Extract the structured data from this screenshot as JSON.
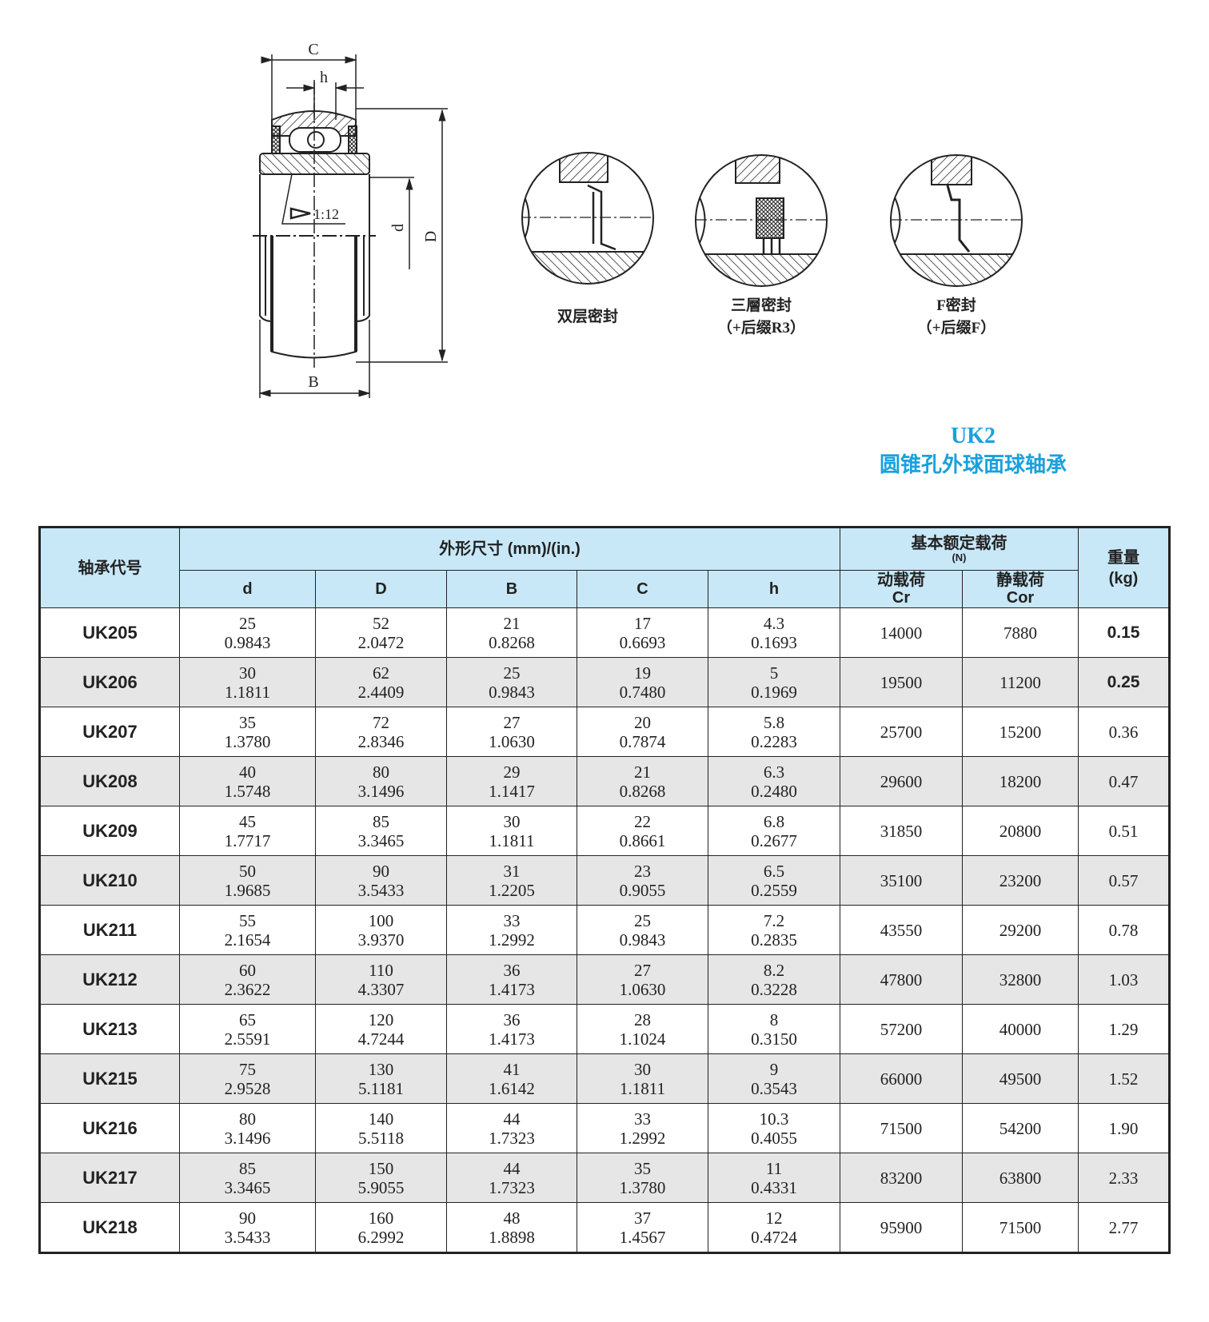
{
  "drawing": {
    "dim_labels": {
      "C": "C",
      "h": "h",
      "B": "B",
      "d": "d",
      "D": "D",
      "taper": "1:12"
    },
    "seals": [
      {
        "line1": "双层密封",
        "line2": ""
      },
      {
        "line1": "三層密封",
        "line2": "（+后缀R3）"
      },
      {
        "line1": "F密封",
        "line2": "（+后缀F）"
      }
    ]
  },
  "title": {
    "code": "UK2",
    "subtitle": "圆锥孔外球面球轴承",
    "color": "#1aa0dc"
  },
  "table": {
    "header": {
      "code": "轴承代号",
      "dims_group": "外形尺寸 (mm)/(in.)",
      "load_group": "基本额定载荷",
      "load_unit": "(N)",
      "weight": "重量",
      "weight_unit": "(kg)",
      "d": "d",
      "D": "D",
      "B": "B",
      "C": "C",
      "h": "h",
      "cr_label": "动载荷",
      "cr": "Cr",
      "cor_label": "静载荷",
      "cor": "Cor"
    },
    "rows": [
      {
        "code": "UK205",
        "d": [
          "25",
          "0.9843"
        ],
        "D": [
          "52",
          "2.0472"
        ],
        "B": [
          "21",
          "0.8268"
        ],
        "C": [
          "17",
          "0.6693"
        ],
        "h": [
          "4.3",
          "0.1693"
        ],
        "Cr": "14000",
        "Cor": "7880",
        "w": "0.15"
      },
      {
        "code": "UK206",
        "d": [
          "30",
          "1.1811"
        ],
        "D": [
          "62",
          "2.4409"
        ],
        "B": [
          "25",
          "0.9843"
        ],
        "C": [
          "19",
          "0.7480"
        ],
        "h": [
          "5",
          "0.1969"
        ],
        "Cr": "19500",
        "Cor": "11200",
        "w": "0.25"
      },
      {
        "code": "UK207",
        "d": [
          "35",
          "1.3780"
        ],
        "D": [
          "72",
          "2.8346"
        ],
        "B": [
          "27",
          "1.0630"
        ],
        "C": [
          "20",
          "0.7874"
        ],
        "h": [
          "5.8",
          "0.2283"
        ],
        "Cr": "25700",
        "Cor": "15200",
        "w": "0.36"
      },
      {
        "code": "UK208",
        "d": [
          "40",
          "1.5748"
        ],
        "D": [
          "80",
          "3.1496"
        ],
        "B": [
          "29",
          "1.1417"
        ],
        "C": [
          "21",
          "0.8268"
        ],
        "h": [
          "6.3",
          "0.2480"
        ],
        "Cr": "29600",
        "Cor": "18200",
        "w": "0.47"
      },
      {
        "code": "UK209",
        "d": [
          "45",
          "1.7717"
        ],
        "D": [
          "85",
          "3.3465"
        ],
        "B": [
          "30",
          "1.1811"
        ],
        "C": [
          "22",
          "0.8661"
        ],
        "h": [
          "6.8",
          "0.2677"
        ],
        "Cr": "31850",
        "Cor": "20800",
        "w": "0.51"
      },
      {
        "code": "UK210",
        "d": [
          "50",
          "1.9685"
        ],
        "D": [
          "90",
          "3.5433"
        ],
        "B": [
          "31",
          "1.2205"
        ],
        "C": [
          "23",
          "0.9055"
        ],
        "h": [
          "6.5",
          "0.2559"
        ],
        "Cr": "35100",
        "Cor": "23200",
        "w": "0.57"
      },
      {
        "code": "UK211",
        "d": [
          "55",
          "2.1654"
        ],
        "D": [
          "100",
          "3.9370"
        ],
        "B": [
          "33",
          "1.2992"
        ],
        "C": [
          "25",
          "0.9843"
        ],
        "h": [
          "7.2",
          "0.2835"
        ],
        "Cr": "43550",
        "Cor": "29200",
        "w": "0.78"
      },
      {
        "code": "UK212",
        "d": [
          "60",
          "2.3622"
        ],
        "D": [
          "110",
          "4.3307"
        ],
        "B": [
          "36",
          "1.4173"
        ],
        "C": [
          "27",
          "1.0630"
        ],
        "h": [
          "8.2",
          "0.3228"
        ],
        "Cr": "47800",
        "Cor": "32800",
        "w": "1.03"
      },
      {
        "code": "UK213",
        "d": [
          "65",
          "2.5591"
        ],
        "D": [
          "120",
          "4.7244"
        ],
        "B": [
          "36",
          "1.4173"
        ],
        "C": [
          "28",
          "1.1024"
        ],
        "h": [
          "8",
          "0.3150"
        ],
        "Cr": "57200",
        "Cor": "40000",
        "w": "1.29"
      },
      {
        "code": "UK215",
        "d": [
          "75",
          "2.9528"
        ],
        "D": [
          "130",
          "5.1181"
        ],
        "B": [
          "41",
          "1.6142"
        ],
        "C": [
          "30",
          "1.1811"
        ],
        "h": [
          "9",
          "0.3543"
        ],
        "Cr": "66000",
        "Cor": "49500",
        "w": "1.52"
      },
      {
        "code": "UK216",
        "d": [
          "80",
          "3.1496"
        ],
        "D": [
          "140",
          "5.5118"
        ],
        "B": [
          "44",
          "1.7323"
        ],
        "C": [
          "33",
          "1.2992"
        ],
        "h": [
          "10.3",
          "0.4055"
        ],
        "Cr": "71500",
        "Cor": "54200",
        "w": "1.90"
      },
      {
        "code": "UK217",
        "d": [
          "85",
          "3.3465"
        ],
        "D": [
          "150",
          "5.9055"
        ],
        "B": [
          "44",
          "1.7323"
        ],
        "C": [
          "35",
          "1.3780"
        ],
        "h": [
          "11",
          "0.4331"
        ],
        "Cr": "83200",
        "Cor": "63800",
        "w": "2.33"
      },
      {
        "code": "UK218",
        "d": [
          "90",
          "3.5433"
        ],
        "D": [
          "160",
          "6.2992"
        ],
        "B": [
          "48",
          "1.8898"
        ],
        "C": [
          "37",
          "1.4567"
        ],
        "h": [
          "12",
          "0.4724"
        ],
        "Cr": "95900",
        "Cor": "71500",
        "w": "2.77"
      }
    ]
  }
}
